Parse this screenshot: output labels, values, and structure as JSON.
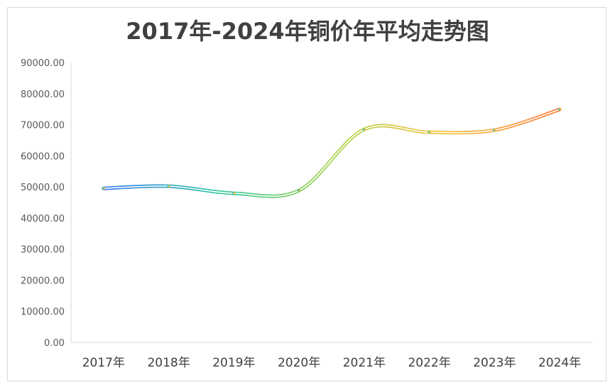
{
  "chart_data": {
    "type": "line",
    "title": "2017年-2024年铜价年平均走势图",
    "categories": [
      "2017年",
      "2018年",
      "2019年",
      "2020年",
      "2021年",
      "2022年",
      "2023年",
      "2024年"
    ],
    "values": [
      49540,
      50230,
      47950,
      48860,
      68500,
      67580,
      68260,
      74890
    ],
    "ylim": [
      0,
      90000
    ],
    "yticks": [
      "0.00",
      "10000.00",
      "20000.00",
      "30000.00",
      "40000.00",
      "50000.00",
      "60000.00",
      "70000.00",
      "80000.00",
      "90000.00"
    ],
    "grid": false,
    "smooth": true,
    "gradient_colors": [
      "#3b7cf0",
      "#2fc6a0",
      "#a8d44e",
      "#f9c23c",
      "#fb7a3c"
    ]
  }
}
